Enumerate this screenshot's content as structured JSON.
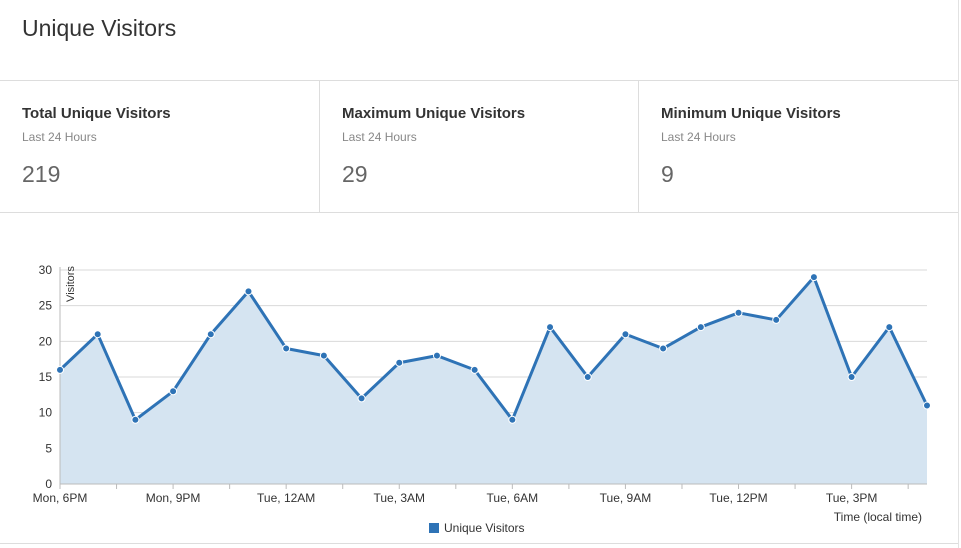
{
  "page": {
    "title": "Unique Visitors"
  },
  "stats": [
    {
      "title": "Total Unique Visitors",
      "subtitle": "Last 24 Hours",
      "value": "219"
    },
    {
      "title": "Maximum Unique Visitors",
      "subtitle": "Last 24 Hours",
      "value": "29"
    },
    {
      "title": "Minimum Unique Visitors",
      "subtitle": "Last 24 Hours",
      "value": "9"
    }
  ],
  "chart_data": {
    "type": "area",
    "title": "",
    "xlabel": "Time (local time)",
    "ylabel": "Visitors",
    "ylim": [
      0,
      30
    ],
    "yticks": [
      0,
      5,
      10,
      15,
      20,
      25,
      30
    ],
    "x_tick_labels": [
      "Mon, 6PM",
      "Mon, 9PM",
      "Tue, 12AM",
      "Tue, 3AM",
      "Tue, 6AM",
      "Tue, 9AM",
      "Tue, 12PM",
      "Tue, 3PM"
    ],
    "x_hours_per_tick_label": 3,
    "x_hours_total": 23,
    "grid": true,
    "legend": "bottom-center",
    "series": [
      {
        "name": "Unique Visitors",
        "values": [
          16,
          21,
          9,
          13,
          21,
          27,
          19,
          18,
          12,
          17,
          18,
          16,
          9,
          22,
          15,
          21,
          19,
          22,
          24,
          23,
          29,
          15,
          22,
          11
        ]
      }
    ]
  },
  "colors": {
    "line": "#2e73b6",
    "area": "#d5e4f1",
    "grid": "#d9d9d9",
    "axis": "#bbbbbb",
    "text": "#333333",
    "muted": "#888888"
  }
}
